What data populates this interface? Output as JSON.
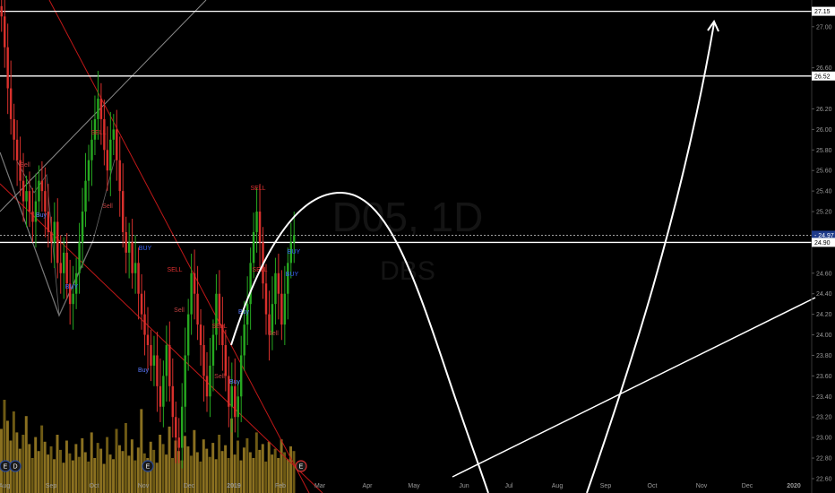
{
  "chart_data": {
    "type": "candlestick",
    "watermark": {
      "symbol": "D05, 1D",
      "name": "DBS"
    },
    "ylim": [
      22.46,
      27.26
    ],
    "price_ticks": [
      "27.00",
      "26.60",
      "26.20",
      "26.00",
      "25.80",
      "25.60",
      "25.40",
      "25.20",
      "24.60",
      "24.40",
      "24.20",
      "24.00",
      "23.80",
      "23.60",
      "23.40",
      "23.20",
      "23.00",
      "22.80",
      "22.60"
    ],
    "price_tag_values": [
      {
        "label": "27.15",
        "value": 27.15
      },
      {
        "label": "26.52",
        "value": 26.52
      },
      {
        "label": "24.97",
        "value": 24.97,
        "current": true
      },
      {
        "label": "24.90",
        "value": 24.9
      }
    ],
    "horizontal_levels": [
      27.15,
      26.52,
      24.9
    ],
    "time_labels": [
      "Aug",
      "Sep",
      "Oct",
      "Nov",
      "Dec",
      "2019",
      "Feb",
      "Mar",
      "Apr",
      "May",
      "Jun",
      "Jul",
      "Aug",
      "Sep",
      "Oct",
      "Nov",
      "Dec",
      "2020"
    ],
    "event_markers": [
      "E",
      "D",
      "E",
      "E"
    ],
    "signal_labels": [
      "SELL",
      "Sell",
      "BUY",
      "Buy"
    ],
    "closes": [
      27.1,
      26.8,
      26.4,
      26.1,
      25.9,
      25.7,
      25.5,
      25.3,
      25.4,
      25.2,
      25.1,
      25.3,
      25.5,
      25.4,
      25.2,
      25.0,
      24.9,
      25.1,
      24.7,
      24.6,
      24.8,
      24.5,
      24.3,
      24.4,
      24.6,
      24.9,
      25.2,
      25.5,
      25.7,
      25.9,
      26.1,
      26.3,
      26.1,
      25.8,
      25.6,
      25.9,
      26.0,
      25.7,
      25.4,
      25.0,
      24.8,
      24.9,
      24.6,
      24.7,
      24.4,
      24.2,
      24.0,
      23.9,
      23.7,
      23.8,
      23.5,
      23.3,
      23.6,
      23.9,
      23.5,
      23.2,
      23.0,
      22.9,
      23.3,
      23.8,
      24.2,
      24.6,
      24.4,
      24.1,
      23.9,
      23.6,
      23.4,
      23.7,
      24.0,
      24.4,
      24.1,
      23.9,
      23.6,
      23.3,
      23.5,
      23.2,
      23.4,
      23.8,
      24.1,
      24.3,
      24.7,
      25.0,
      25.2,
      24.9,
      24.5,
      24.2,
      24.0,
      24.3,
      24.6,
      24.4,
      24.1,
      24.4,
      24.7,
      24.9,
      24.97
    ],
    "volume_levels": [
      0.55,
      0.8,
      0.62,
      0.45,
      0.7,
      0.52,
      0.38,
      0.5,
      0.66,
      0.42,
      0.3,
      0.48,
      0.36,
      0.58,
      0.44,
      0.33,
      0.4,
      0.29,
      0.5,
      0.37,
      0.26,
      0.45,
      0.34,
      0.28,
      0.42,
      0.31,
      0.47,
      0.35,
      0.27,
      0.52,
      0.3,
      0.43,
      0.38,
      0.25,
      0.48,
      0.33,
      0.29,
      0.55,
      0.41,
      0.36,
      0.6,
      0.32,
      0.46,
      0.28,
      0.39,
      0.72,
      0.34,
      0.3,
      0.44,
      0.37,
      0.26,
      0.5,
      0.42,
      0.33,
      0.57,
      0.3,
      0.45,
      0.36,
      0.28,
      0.49,
      0.4,
      0.32,
      0.54,
      0.35,
      0.27,
      0.46,
      0.38,
      0.31,
      0.43,
      0.29,
      0.5,
      0.36,
      0.41,
      0.3,
      0.64,
      0.33,
      0.45,
      0.28,
      0.39,
      0.47,
      0.35,
      0.3,
      0.52,
      0.37,
      0.42,
      0.27,
      0.44,
      0.33,
      0.38,
      0.3,
      0.46,
      0.35,
      0.29,
      0.4,
      0.36
    ]
  }
}
